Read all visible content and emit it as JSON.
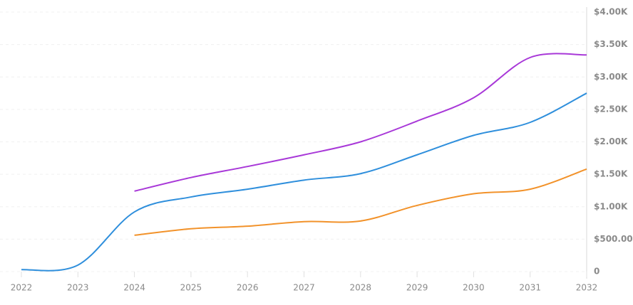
{
  "chart_data": {
    "type": "line",
    "x": [
      2022,
      2023,
      2024,
      2025,
      2026,
      2027,
      2028,
      2029,
      2030,
      2031,
      2032
    ],
    "series": [
      {
        "color": "#2f8fdc",
        "values": [
          30,
          100,
          920,
          1150,
          1270,
          1410,
          1510,
          1800,
          2100,
          2300,
          2750
        ]
      },
      {
        "color": "#a838d8",
        "values": [
          null,
          null,
          1240,
          1450,
          1620,
          1800,
          2000,
          2320,
          2680,
          3300,
          3340
        ]
      },
      {
        "color": "#f2922a",
        "values": [
          null,
          null,
          560,
          660,
          700,
          770,
          780,
          1020,
          1200,
          1270,
          1580
        ]
      }
    ],
    "xlim": [
      2022,
      2032
    ],
    "xticks": [
      2022,
      2023,
      2024,
      2025,
      2026,
      2027,
      2028,
      2029,
      2030,
      2031,
      2032
    ],
    "ylim": [
      0,
      4000
    ],
    "yticks": [
      0,
      {
        "value": 500,
        "label": "$500.00"
      },
      {
        "value": 1000,
        "label": "$1.00K"
      },
      {
        "value": 1500,
        "label": "$1.50K"
      },
      {
        "value": 2000,
        "label": "$2.00K"
      },
      {
        "value": 2500,
        "label": "$2.50K"
      },
      {
        "value": 3000,
        "label": "$3.00K"
      },
      {
        "value": 3500,
        "label": "$3.50K"
      },
      {
        "value": 4000,
        "label": "$4.00K"
      }
    ],
    "grid": true
  }
}
